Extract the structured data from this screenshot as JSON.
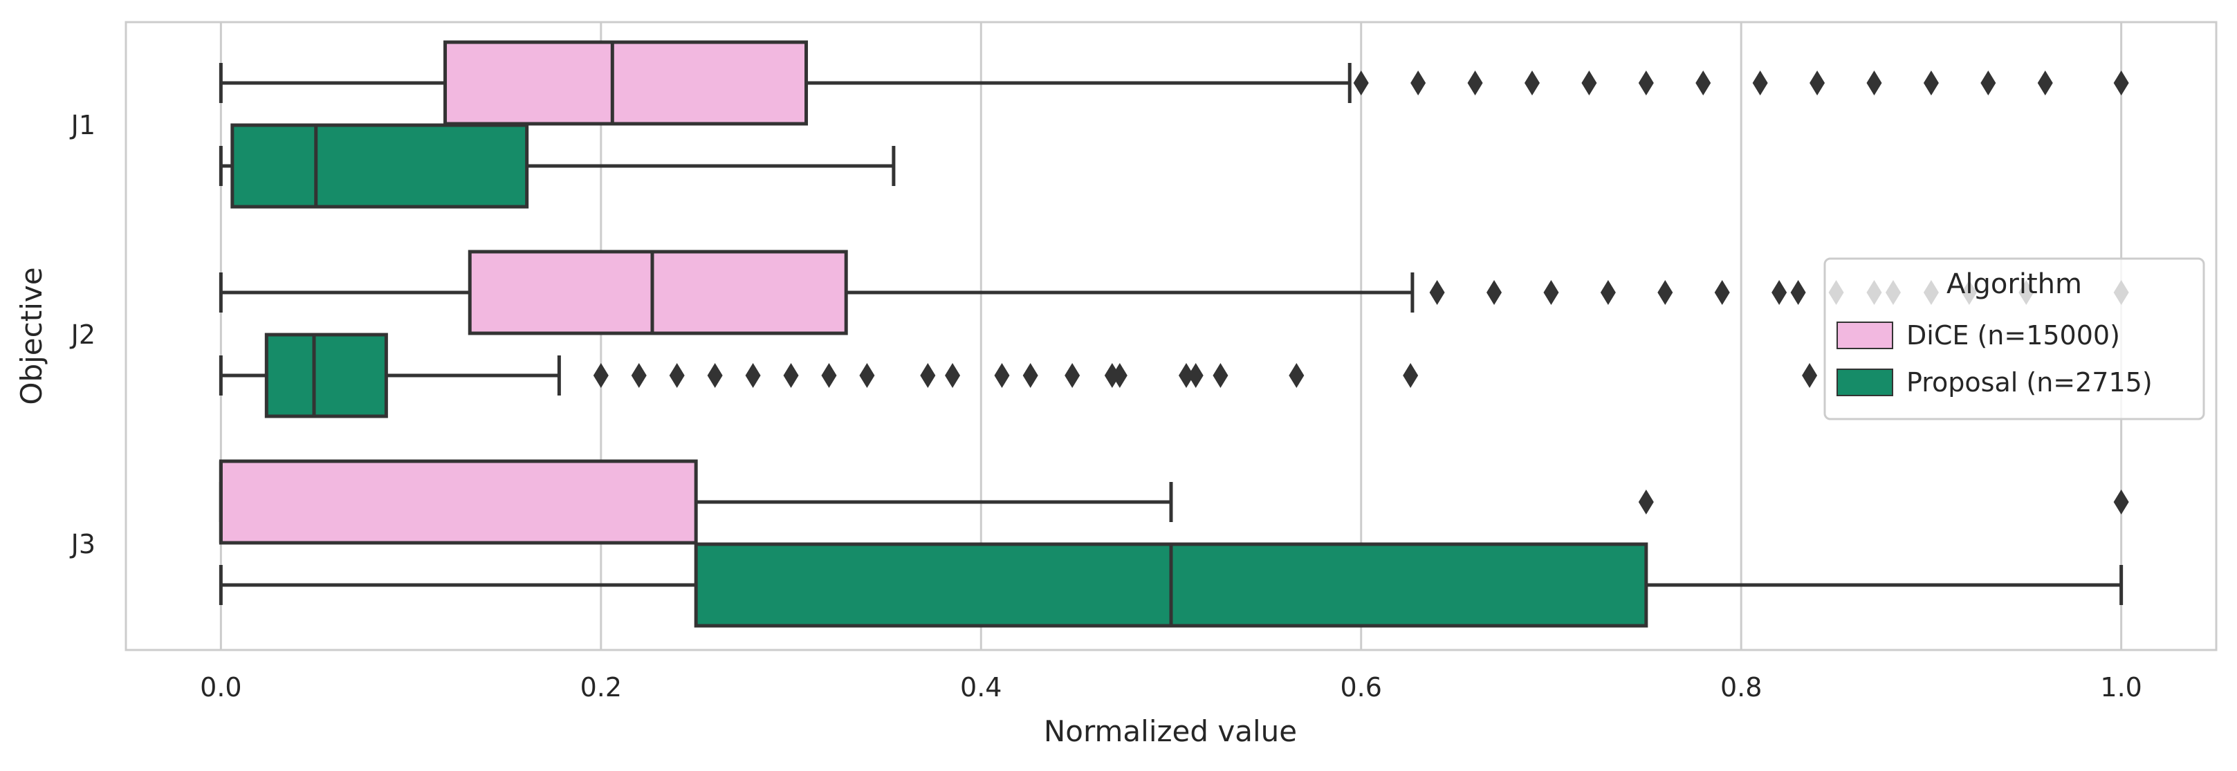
{
  "chart_data": {
    "type": "boxplot",
    "orientation": "horizontal",
    "title": "",
    "xlabel": "Normalized value",
    "ylabel": "Objective",
    "xlim": [
      -0.05,
      1.05
    ],
    "xticks": [
      0.0,
      0.2,
      0.4,
      0.6,
      0.8,
      1.0
    ],
    "xtick_labels": [
      "0.0",
      "0.2",
      "0.4",
      "0.6",
      "0.8",
      "1.0"
    ],
    "grid": "x",
    "categories": [
      "J1",
      "J2",
      "J3"
    ],
    "legend": {
      "title": "Algorithm",
      "placement": "center-right",
      "entries": [
        "DiCE (n=15000)",
        "Proposal (n=2715)"
      ]
    },
    "series": [
      {
        "name": "DiCE (n=15000)",
        "color": "#f2b8e0",
        "boxes": [
          {
            "category": "J1",
            "whisker_low": 0.0,
            "q1": 0.118,
            "median": 0.206,
            "q3": 0.308,
            "whisker_high": 0.594,
            "outliers": [
              0.6,
              0.63,
              0.66,
              0.69,
              0.72,
              0.75,
              0.78,
              0.81,
              0.84,
              0.87,
              0.9,
              0.93,
              0.96,
              1.0
            ]
          },
          {
            "category": "J2",
            "whisker_low": 0.0,
            "q1": 0.131,
            "median": 0.227,
            "q3": 0.329,
            "whisker_high": 0.627,
            "outliers": [
              0.64,
              0.67,
              0.7,
              0.73,
              0.76,
              0.79,
              0.82,
              0.83,
              0.85,
              0.87,
              0.88,
              0.9,
              0.92,
              0.95,
              1.0
            ]
          },
          {
            "category": "J3",
            "whisker_low": 0.0,
            "q1": 0.0,
            "median": 0.0,
            "q3": 0.25,
            "whisker_high": 0.5,
            "outliers": [
              0.75,
              1.0
            ]
          }
        ]
      },
      {
        "name": "Proposal (n=2715)",
        "color": "#168c68",
        "boxes": [
          {
            "category": "J1",
            "whisker_low": 0.0,
            "q1": 0.006,
            "median": 0.05,
            "q3": 0.161,
            "whisker_high": 0.354,
            "outliers": []
          },
          {
            "category": "J2",
            "whisker_low": 0.0,
            "q1": 0.024,
            "median": 0.049,
            "q3": 0.087,
            "whisker_high": 0.178,
            "outliers": [
              0.2,
              0.22,
              0.24,
              0.26,
              0.28,
              0.3,
              0.32,
              0.34,
              0.372,
              0.385,
              0.411,
              0.426,
              0.448,
              0.469,
              0.473,
              0.508,
              0.513,
              0.526,
              0.566,
              0.626,
              0.836
            ]
          },
          {
            "category": "J3",
            "whisker_low": 0.0,
            "q1": 0.25,
            "median": 0.5,
            "q3": 0.75,
            "whisker_high": 1.0,
            "outliers": []
          }
        ]
      }
    ]
  }
}
